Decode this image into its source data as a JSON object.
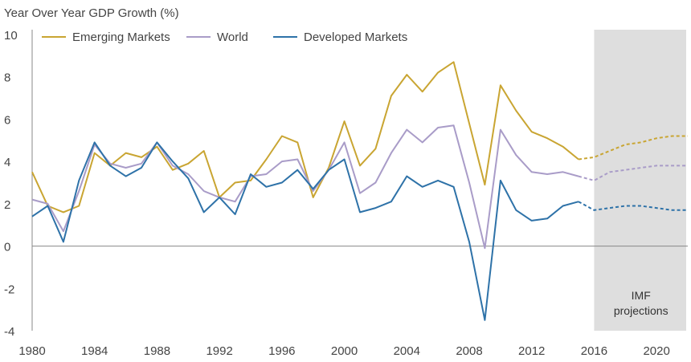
{
  "chart_data": {
    "type": "line",
    "title": "Year Over Year GDP Growth (%)",
    "ylim": [
      -4,
      10
    ],
    "yticks": [
      "10",
      "8",
      "6",
      "4",
      "2",
      "0",
      "-2",
      "-4"
    ],
    "ytick_values": [
      10,
      8,
      6,
      4,
      2,
      0,
      -2,
      -4
    ],
    "xlim": [
      1980,
      2022
    ],
    "xticks": [
      "1980",
      "1984",
      "1988",
      "1992",
      "1996",
      "2000",
      "2004",
      "2008",
      "2012",
      "2016",
      "2020"
    ],
    "xtick_values": [
      1980,
      1984,
      1988,
      1992,
      1996,
      2000,
      2004,
      2008,
      2012,
      2016,
      2020
    ],
    "projection_label": [
      "IMF",
      "projections"
    ],
    "projection_start": 2016,
    "projection_end": 2022,
    "colors": {
      "emerging": "#c9a532",
      "world": "#a99cc8",
      "developed": "#2e72a8",
      "shade": "#dedede",
      "axis": "#888888",
      "text": "#444444"
    },
    "series": [
      {
        "name": "Emerging Markets",
        "key": "emerging",
        "x": [
          1980,
          1981,
          1982,
          1983,
          1984,
          1985,
          1986,
          1987,
          1988,
          1989,
          1990,
          1991,
          1992,
          1993,
          1994,
          1995,
          1996,
          1997,
          1998,
          1999,
          2000,
          2001,
          2002,
          2003,
          2004,
          2005,
          2006,
          2007,
          2008,
          2009,
          2010,
          2011,
          2012,
          2013,
          2014,
          2015
        ],
        "values": [
          3.5,
          1.9,
          1.6,
          1.9,
          4.4,
          3.8,
          4.4,
          4.2,
          4.7,
          3.6,
          3.9,
          4.5,
          2.3,
          3.0,
          3.1,
          4.1,
          5.2,
          4.9,
          2.3,
          3.7,
          5.9,
          3.8,
          4.6,
          7.1,
          8.1,
          7.3,
          8.2,
          8.7,
          5.8,
          2.9,
          7.6,
          6.4,
          5.4,
          5.1,
          4.7,
          4.1
        ],
        "proj_x": [
          2015,
          2016,
          2017,
          2018,
          2019,
          2020,
          2021,
          2022
        ],
        "proj_values": [
          4.1,
          4.2,
          4.5,
          4.8,
          4.9,
          5.1,
          5.2,
          5.2
        ]
      },
      {
        "name": "World",
        "key": "world",
        "x": [
          1980,
          1981,
          1982,
          1983,
          1984,
          1985,
          1986,
          1987,
          1988,
          1989,
          1990,
          1991,
          1992,
          1993,
          1994,
          1995,
          1996,
          1997,
          1998,
          1999,
          2000,
          2001,
          2002,
          2003,
          2004,
          2005,
          2006,
          2007,
          2008,
          2009,
          2010,
          2011,
          2012,
          2013,
          2014,
          2015
        ],
        "values": [
          2.2,
          2.0,
          0.7,
          2.6,
          4.8,
          3.9,
          3.7,
          3.9,
          4.9,
          3.8,
          3.4,
          2.6,
          2.3,
          2.1,
          3.3,
          3.4,
          4.0,
          4.1,
          2.6,
          3.6,
          4.9,
          2.5,
          3.0,
          4.4,
          5.5,
          4.9,
          5.6,
          5.7,
          3.0,
          -0.1,
          5.5,
          4.3,
          3.5,
          3.4,
          3.5,
          3.3
        ],
        "proj_x": [
          2015,
          2016,
          2017,
          2018,
          2019,
          2020,
          2021,
          2022
        ],
        "proj_values": [
          3.3,
          3.1,
          3.5,
          3.6,
          3.7,
          3.8,
          3.8,
          3.8
        ]
      },
      {
        "name": "Developed Markets",
        "key": "developed",
        "x": [
          1980,
          1981,
          1982,
          1983,
          1984,
          1985,
          1986,
          1987,
          1988,
          1989,
          1990,
          1991,
          1992,
          1993,
          1994,
          1995,
          1996,
          1997,
          1998,
          1999,
          2000,
          2001,
          2002,
          2003,
          2004,
          2005,
          2006,
          2007,
          2008,
          2009,
          2010,
          2011,
          2012,
          2013,
          2014,
          2015
        ],
        "values": [
          1.4,
          1.9,
          0.2,
          3.1,
          4.9,
          3.8,
          3.3,
          3.7,
          4.9,
          4.0,
          3.2,
          1.6,
          2.3,
          1.5,
          3.4,
          2.8,
          3.0,
          3.6,
          2.7,
          3.6,
          4.1,
          1.6,
          1.8,
          2.1,
          3.3,
          2.8,
          3.1,
          2.8,
          0.2,
          -3.5,
          3.1,
          1.7,
          1.2,
          1.3,
          1.9,
          2.1
        ],
        "proj_x": [
          2015,
          2016,
          2017,
          2018,
          2019,
          2020,
          2021,
          2022
        ],
        "proj_values": [
          2.1,
          1.7,
          1.8,
          1.9,
          1.9,
          1.8,
          1.7,
          1.7
        ]
      }
    ]
  }
}
